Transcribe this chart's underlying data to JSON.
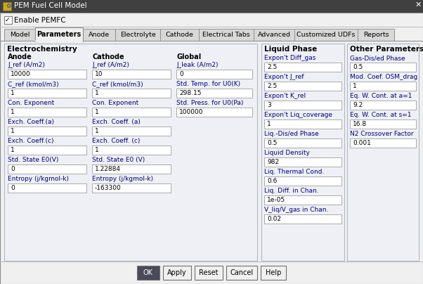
{
  "title": "PEM Fuel Cell Model",
  "checkbox_label": "Enable PEMFC",
  "tabs": [
    "Model",
    "Parameters",
    "Anode",
    "Electrolyte",
    "Cathode",
    "Electrical Tabs",
    "Advanced",
    "Customized UDFs",
    "Reports"
  ],
  "active_tab": "Parameters",
  "section_electrochemistry": "Electrochemistry",
  "col_anode": "Anode",
  "col_cathode": "Cathode",
  "col_global": "Global",
  "section_liquid": "Liquid Phase",
  "section_other": "Other Parameters",
  "anode_fields": [
    {
      "label": "J_ref (A/m2)",
      "value": "10000"
    },
    {
      "label": "C_ref (kmol/m3)",
      "value": "1"
    },
    {
      "label": "Con. Exponent",
      "value": "1"
    },
    {
      "label": "Exch. Coeff.(a)",
      "value": "1"
    },
    {
      "label": "Exch. Coeff.(c)",
      "value": "1"
    },
    {
      "label": "Std. State E0(V)",
      "value": "0"
    },
    {
      "label": "Entropy (j/kgmol-k)",
      "value": "0"
    }
  ],
  "cathode_fields": [
    {
      "label": "J_ref (A/m2)",
      "value": "10"
    },
    {
      "label": "C_ref (kmol/m3)",
      "value": "1"
    },
    {
      "label": "Con. Exponent",
      "value": "1"
    },
    {
      "label": "Exch. Coeff. (a)",
      "value": "1"
    },
    {
      "label": "Exch. Coeff. (c)",
      "value": "1"
    },
    {
      "label": "Std. State E0 (V)",
      "value": "1.22884"
    },
    {
      "label": "Entropy (j/kgmol-k)",
      "value": "-163300"
    }
  ],
  "global_fields": [
    {
      "label": "J_leak (A/m2)",
      "value": "0"
    },
    {
      "label": "Std. Temp. for U0(K)",
      "value": "298.15"
    },
    {
      "label": "Std. Press. for U0(Pa)",
      "value": "100000"
    }
  ],
  "liquid_fields": [
    {
      "label": "Expon't Diff_gas",
      "value": "2.5"
    },
    {
      "label": "Expon't J_ref",
      "value": "2.5"
    },
    {
      "label": "Expon't K_rel",
      "value": "3"
    },
    {
      "label": "Expon't Liq_coverage",
      "value": "1"
    },
    {
      "label": "Liq.-Dis/ed Phase",
      "value": "0.5"
    },
    {
      "label": "Liquid Density",
      "value": "982"
    },
    {
      "label": "Liq. Thermal Cond.",
      "value": "0.6"
    },
    {
      "label": "Liq. Diff. in Chan.",
      "value": "1e-05"
    },
    {
      "label": "V_liq/V_gas in Chan.",
      "value": "0.02"
    }
  ],
  "other_fields": [
    {
      "label": "Gas-Dis/ed Phase",
      "value": "0.5"
    },
    {
      "label": "Mod. Coef. OSM_drag",
      "value": "1"
    },
    {
      "label": "Eq. W. Cont. at a=1",
      "value": "9.2"
    },
    {
      "label": "Eq. W. Cont. at s=1",
      "value": "16.8"
    },
    {
      "label": "N2 Crossover Factor",
      "value": "0.001"
    }
  ],
  "buttons": [
    "OK",
    "Apply",
    "Reset",
    "Cancel",
    "Help"
  ],
  "bg_color": "#f0f0f0",
  "dialog_bg": "#f0f0f0",
  "input_bg": "#ffffff",
  "titlebar_bg": "#404040",
  "titlebar_fg": "#ffffff",
  "text_color": "#000000",
  "label_color": "#000080",
  "bold_color": "#000000",
  "button_ok_bg": "#4a4a5a",
  "button_bg": "#f0f0f0",
  "section_box_color": "#c0c8d8",
  "tab_active_bg": "#f0f0f0",
  "tab_inactive_bg": "#d8d8d8"
}
